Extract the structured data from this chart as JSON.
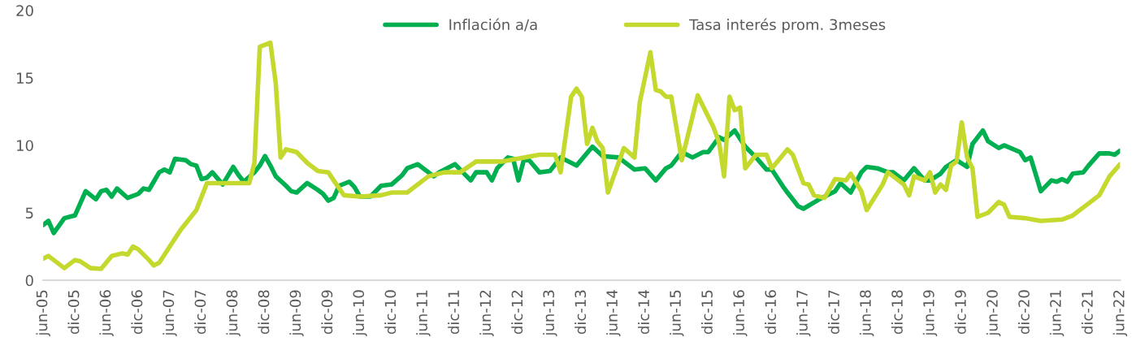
{
  "chart_data": {
    "type": "line",
    "xlim": [
      "2005-06",
      "2022-06"
    ],
    "ylim": [
      0,
      20
    ],
    "yticks": [
      0,
      5,
      10,
      15,
      20
    ],
    "xticks": [
      {
        "value": "2005-06",
        "label": "jun-05"
      },
      {
        "value": "2005-12",
        "label": "dic-05"
      },
      {
        "value": "2006-06",
        "label": "jun-06"
      },
      {
        "value": "2006-12",
        "label": "dic-06"
      },
      {
        "value": "2007-06",
        "label": "jun-07"
      },
      {
        "value": "2007-12",
        "label": "dic-07"
      },
      {
        "value": "2008-06",
        "label": "jun-08"
      },
      {
        "value": "2008-12",
        "label": "dic-08"
      },
      {
        "value": "2009-06",
        "label": "jun-09"
      },
      {
        "value": "2009-12",
        "label": "dic-09"
      },
      {
        "value": "2010-06",
        "label": "jun-10"
      },
      {
        "value": "2010-12",
        "label": "dic-10"
      },
      {
        "value": "2011-06",
        "label": "jun-11"
      },
      {
        "value": "2011-12",
        "label": "dic-11"
      },
      {
        "value": "2012-06",
        "label": "jun-12"
      },
      {
        "value": "2012-12",
        "label": "dic-12"
      },
      {
        "value": "2013-06",
        "label": "jun-13"
      },
      {
        "value": "2013-12",
        "label": "dic-13"
      },
      {
        "value": "2014-06",
        "label": "jun-14"
      },
      {
        "value": "2014-12",
        "label": "dic-14"
      },
      {
        "value": "2015-06",
        "label": "jun-15"
      },
      {
        "value": "2015-12",
        "label": "dic-15"
      },
      {
        "value": "2016-06",
        "label": "jun-16"
      },
      {
        "value": "2016-12",
        "label": "dic-16"
      },
      {
        "value": "2017-06",
        "label": "jun-17"
      },
      {
        "value": "2017-12",
        "label": "dic-17"
      },
      {
        "value": "2018-06",
        "label": "jun-18"
      },
      {
        "value": "2018-12",
        "label": "dic-18"
      },
      {
        "value": "2019-06",
        "label": "jun-19"
      },
      {
        "value": "2019-12",
        "label": "dic-19"
      },
      {
        "value": "2020-06",
        "label": "jun-20"
      },
      {
        "value": "2020-12",
        "label": "dic-20"
      },
      {
        "value": "2021-06",
        "label": "jun-21"
      },
      {
        "value": "2021-12",
        "label": "dic-21"
      },
      {
        "value": "2022-06",
        "label": "jun-22"
      }
    ],
    "grid": false,
    "legend": "top",
    "marker": "none",
    "line_style": "solid",
    "series": [
      {
        "name": "Inflación a/a",
        "color": "#00b050",
        "x": [
          "2005-06",
          "2005-07",
          "2005-08",
          "2005-10",
          "2005-12",
          "2006-02",
          "2006-04",
          "2006-05",
          "2006-06",
          "2006-07",
          "2006-08",
          "2006-10",
          "2006-12",
          "2007-01",
          "2007-02",
          "2007-04",
          "2007-05",
          "2007-06",
          "2007-07",
          "2007-09",
          "2007-10",
          "2007-11",
          "2007-12",
          "2008-01",
          "2008-02",
          "2008-04",
          "2008-06",
          "2008-07",
          "2008-08",
          "2008-10",
          "2008-11",
          "2008-12",
          "2009-01",
          "2009-02",
          "2009-04",
          "2009-05",
          "2009-06",
          "2009-08",
          "2009-10",
          "2009-11",
          "2009-12",
          "2010-01",
          "2010-02",
          "2010-04",
          "2010-05",
          "2010-06",
          "2010-08",
          "2010-10",
          "2010-12",
          "2011-02",
          "2011-03",
          "2011-05",
          "2011-06",
          "2011-08",
          "2011-09",
          "2011-12",
          "2012-03",
          "2012-04",
          "2012-06",
          "2012-07",
          "2012-08",
          "2012-10",
          "2012-11",
          "2012-12",
          "2013-01",
          "2013-02",
          "2013-04",
          "2013-06",
          "2013-08",
          "2013-11",
          "2014-02",
          "2014-04",
          "2014-07",
          "2014-10",
          "2014-12",
          "2015-02",
          "2015-04",
          "2015-05",
          "2015-07",
          "2015-09",
          "2015-11",
          "2015-12",
          "2016-02",
          "2016-03",
          "2016-05",
          "2016-07",
          "2016-09",
          "2016-11",
          "2016-12",
          "2017-02",
          "2017-03",
          "2017-05",
          "2017-06",
          "2017-09",
          "2017-12",
          "2018-01",
          "2018-03",
          "2018-05",
          "2018-06",
          "2018-08",
          "2018-10",
          "2018-11",
          "2019-01",
          "2019-03",
          "2019-05",
          "2019-06",
          "2019-08",
          "2019-09",
          "2019-11",
          "2020-01",
          "2020-02",
          "2020-04",
          "2020-05",
          "2020-07",
          "2020-08",
          "2020-11",
          "2020-12",
          "2021-01",
          "2021-03",
          "2021-05",
          "2021-06",
          "2021-07",
          "2021-08",
          "2021-09",
          "2021-11",
          "2021-12",
          "2022-02",
          "2022-04",
          "2022-05",
          "2022-06"
        ],
        "values": [
          4.1,
          4.4,
          3.5,
          4.6,
          4.8,
          6.6,
          6.0,
          6.6,
          6.7,
          6.2,
          6.8,
          6.1,
          6.4,
          6.8,
          6.7,
          8.0,
          8.2,
          8.0,
          9.0,
          8.9,
          8.6,
          8.5,
          7.5,
          7.6,
          8.0,
          7.1,
          8.4,
          7.8,
          7.3,
          8.0,
          8.5,
          9.2,
          8.5,
          7.7,
          7.0,
          6.6,
          6.5,
          7.2,
          6.7,
          6.4,
          5.9,
          6.1,
          7.0,
          7.3,
          6.9,
          6.2,
          6.2,
          7.0,
          7.1,
          7.8,
          8.3,
          8.6,
          8.3,
          7.7,
          8.0,
          8.6,
          7.4,
          8.0,
          8.0,
          7.4,
          8.3,
          9.1,
          9.0,
          7.4,
          8.9,
          8.9,
          8.0,
          8.1,
          9.1,
          8.5,
          9.9,
          9.2,
          9.1,
          8.2,
          8.3,
          7.4,
          8.3,
          8.5,
          9.5,
          9.1,
          9.5,
          9.5,
          10.6,
          10.4,
          11.1,
          9.9,
          9.1,
          8.2,
          8.2,
          7.0,
          6.5,
          5.5,
          5.3,
          6.0,
          6.6,
          7.2,
          6.5,
          8.0,
          8.4,
          8.3,
          8.0,
          8.0,
          7.4,
          8.3,
          7.4,
          7.4,
          7.9,
          8.4,
          8.9,
          8.4,
          10.1,
          11.1,
          10.3,
          9.8,
          10.0,
          9.5,
          8.9,
          9.1,
          6.6,
          7.4,
          7.3,
          7.5,
          7.3,
          7.9,
          8.0,
          8.5,
          9.4,
          9.4,
          9.3,
          9.6
        ]
      },
      {
        "name": "Tasa interés prom. 3meses",
        "color": "#c4d82e",
        "x": [
          "2005-06",
          "2005-07",
          "2005-08",
          "2005-10",
          "2005-12",
          "2006-01",
          "2006-03",
          "2006-05",
          "2006-07",
          "2006-09",
          "2006-10",
          "2006-11",
          "2006-12",
          "2007-02",
          "2007-03",
          "2007-04",
          "2007-06",
          "2007-08",
          "2007-11",
          "2008-01",
          "2008-04",
          "2008-09",
          "2008-10",
          "2008-11",
          "2009-01",
          "2009-02",
          "2009-03",
          "2009-04",
          "2009-06",
          "2009-08",
          "2009-10",
          "2009-12",
          "2010-01",
          "2010-03",
          "2010-06",
          "2010-10",
          "2010-12",
          "2011-03",
          "2011-07",
          "2011-10",
          "2012-01",
          "2012-04",
          "2012-09",
          "2013-04",
          "2013-07",
          "2013-08",
          "2013-10",
          "2013-11",
          "2013-12",
          "2014-01",
          "2014-02",
          "2014-03",
          "2014-04",
          "2014-05",
          "2014-08",
          "2014-10",
          "2014-11",
          "2015-01",
          "2015-02",
          "2015-03",
          "2015-04",
          "2015-05",
          "2015-07",
          "2015-10",
          "2016-01",
          "2016-02",
          "2016-03",
          "2016-04",
          "2016-05",
          "2016-06",
          "2016-07",
          "2016-09",
          "2016-11",
          "2016-12",
          "2017-03",
          "2017-04",
          "2017-06",
          "2017-07",
          "2017-08",
          "2017-10",
          "2017-12",
          "2018-02",
          "2018-03",
          "2018-05",
          "2018-06",
          "2018-09",
          "2018-10",
          "2019-01",
          "2019-02",
          "2019-03",
          "2019-05",
          "2019-06",
          "2019-07",
          "2019-08",
          "2019-09",
          "2019-10",
          "2019-11",
          "2019-12",
          "2020-01",
          "2020-02",
          "2020-03",
          "2020-05",
          "2020-07",
          "2020-08",
          "2020-09",
          "2020-12",
          "2021-03",
          "2021-07",
          "2021-09",
          "2021-11",
          "2022-02",
          "2022-04",
          "2022-06"
        ],
        "values": [
          1.6,
          1.8,
          1.5,
          0.9,
          1.5,
          1.4,
          0.9,
          0.85,
          1.8,
          2.0,
          1.9,
          2.5,
          2.3,
          1.5,
          1.1,
          1.3,
          2.5,
          3.7,
          5.2,
          7.2,
          7.2,
          7.2,
          8.7,
          17.3,
          17.6,
          14.6,
          9.1,
          9.7,
          9.5,
          8.7,
          8.1,
          8.0,
          7.4,
          6.3,
          6.2,
          6.3,
          6.5,
          6.5,
          7.7,
          8.0,
          8.0,
          8.8,
          8.8,
          9.3,
          9.3,
          8.0,
          13.6,
          14.2,
          13.6,
          10.1,
          11.3,
          10.3,
          9.8,
          6.5,
          9.8,
          9.1,
          13.2,
          16.9,
          14.1,
          14.0,
          13.6,
          13.6,
          8.9,
          13.7,
          11.3,
          10.2,
          7.7,
          13.6,
          12.6,
          12.8,
          8.3,
          9.3,
          9.3,
          8.3,
          9.7,
          9.3,
          7.2,
          7.1,
          6.3,
          6.1,
          7.5,
          7.4,
          7.9,
          6.6,
          5.2,
          7.1,
          8.0,
          7.1,
          6.3,
          7.7,
          7.4,
          8.0,
          6.5,
          7.1,
          6.7,
          8.5,
          8.8,
          11.7,
          9.1,
          8.3,
          4.7,
          5.0,
          5.8,
          5.6,
          4.7,
          4.6,
          4.4,
          4.5,
          4.8,
          5.4,
          6.3,
          7.7,
          8.6
        ]
      }
    ]
  }
}
